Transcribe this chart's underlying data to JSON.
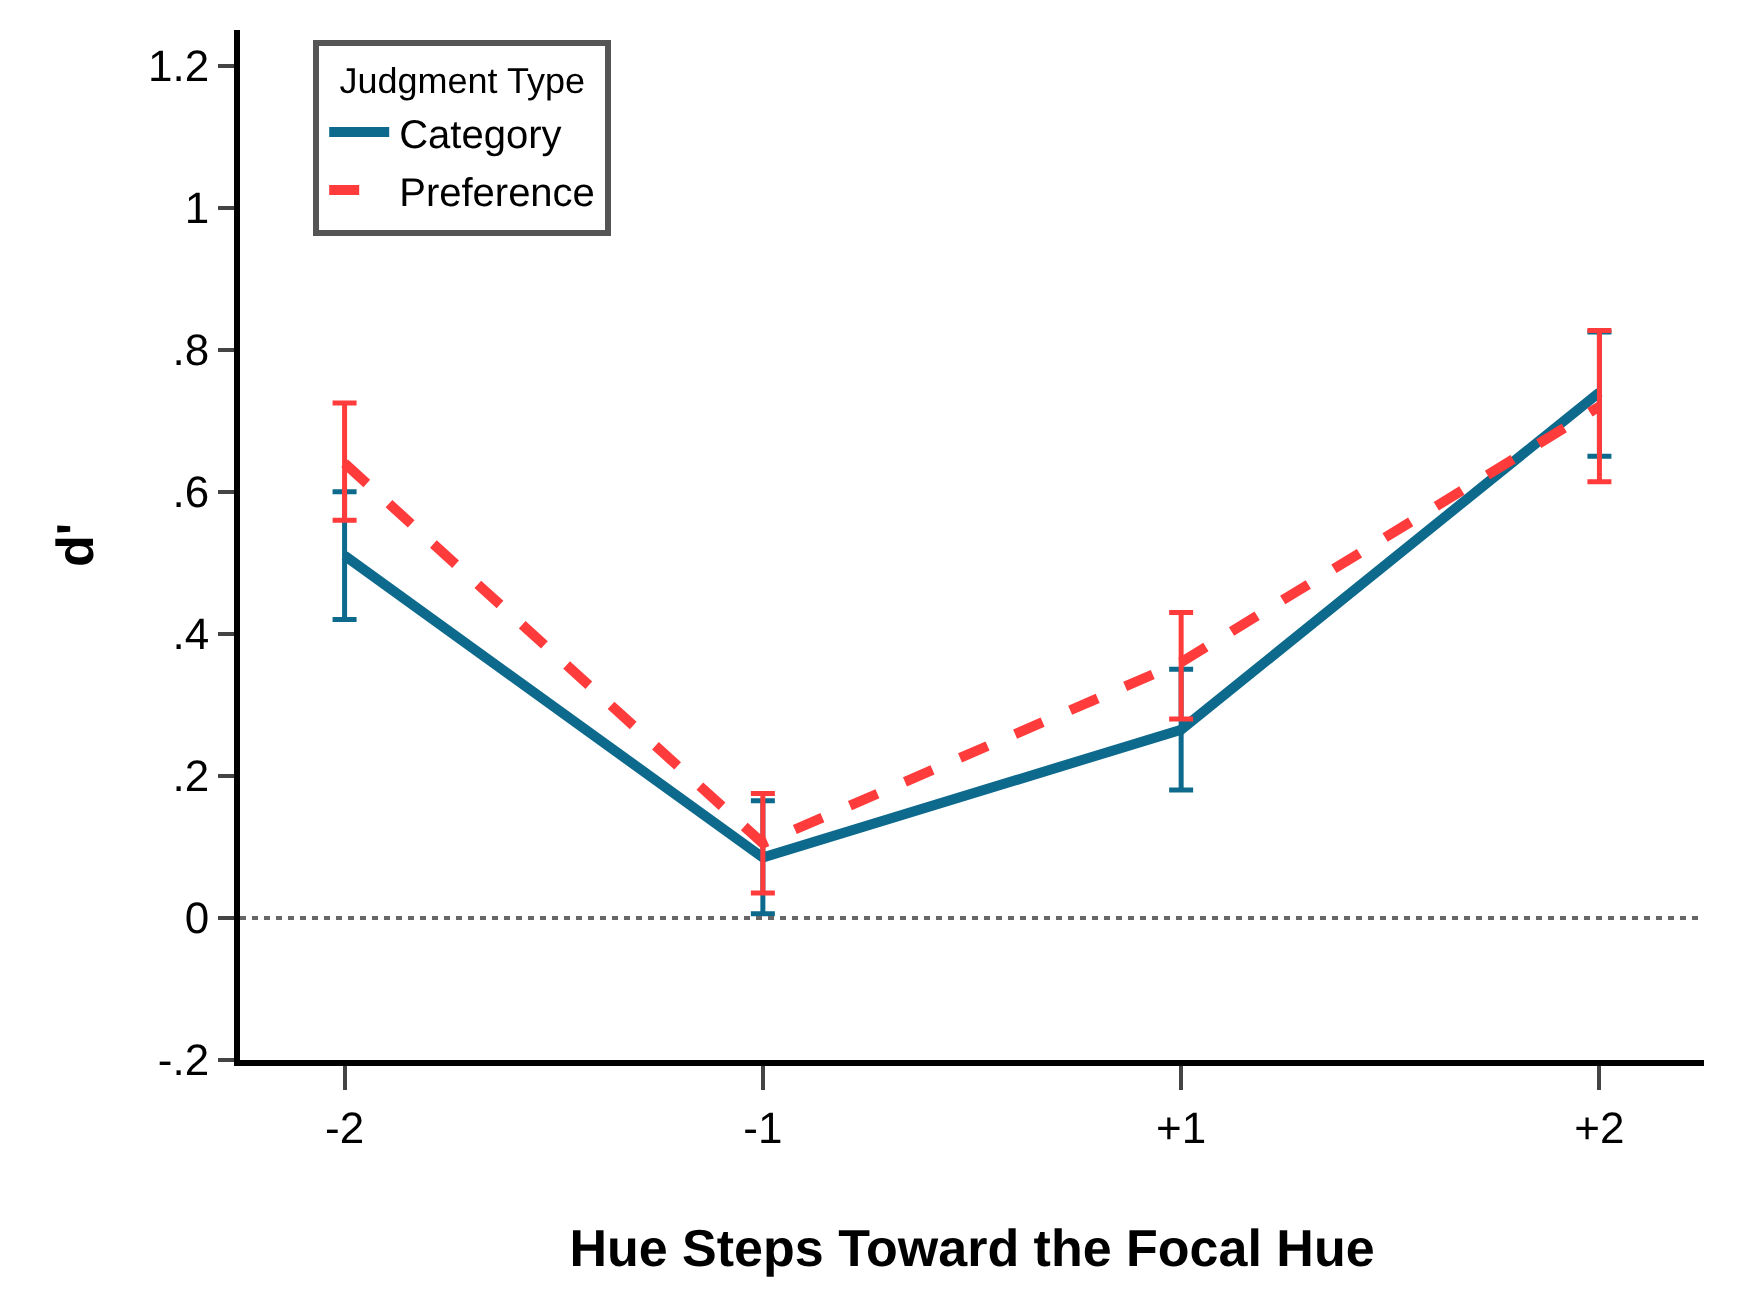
{
  "chart_data": {
    "type": "line",
    "xlabel": "Hue Steps Toward the Focal Hue",
    "ylabel": "d'",
    "categories": [
      "-2",
      "-1",
      "+1",
      "+2"
    ],
    "series": [
      {
        "name": "Category",
        "color": "#0e6a8c",
        "line_style": "solid",
        "values": [
          0.51,
          0.085,
          0.265,
          0.74
        ],
        "errors": [
          [
            0.42,
            0.6
          ],
          [
            0.006,
            0.165
          ],
          [
            0.18,
            0.35
          ],
          [
            0.65,
            0.825
          ]
        ]
      },
      {
        "name": "Preference",
        "color": "#ff3b3b",
        "line_style": "dashed",
        "values": [
          0.64,
          0.105,
          0.36,
          0.72
        ],
        "errors": [
          [
            0.56,
            0.725
          ],
          [
            0.035,
            0.175
          ],
          [
            0.28,
            0.43
          ],
          [
            0.614,
            0.827
          ]
        ]
      }
    ],
    "ylim": [
      -0.2,
      1.25
    ],
    "yticks": [
      {
        "value": -0.2,
        "label": "-.2"
      },
      0,
      {
        "value": 0.2,
        "label": ".2"
      },
      {
        "value": 0.4,
        "label": ".4"
      },
      {
        "value": 0.6,
        "label": ".6"
      },
      {
        "value": 0.8,
        "label": ".8"
      },
      1,
      1.2
    ],
    "ref_lines": [
      {
        "axis": "y",
        "value": 0,
        "label": null,
        "color": "#666666",
        "line_style": "dotted"
      }
    ],
    "legend": "top left",
    "legend_title": "Judgment Type",
    "marker": "none"
  }
}
